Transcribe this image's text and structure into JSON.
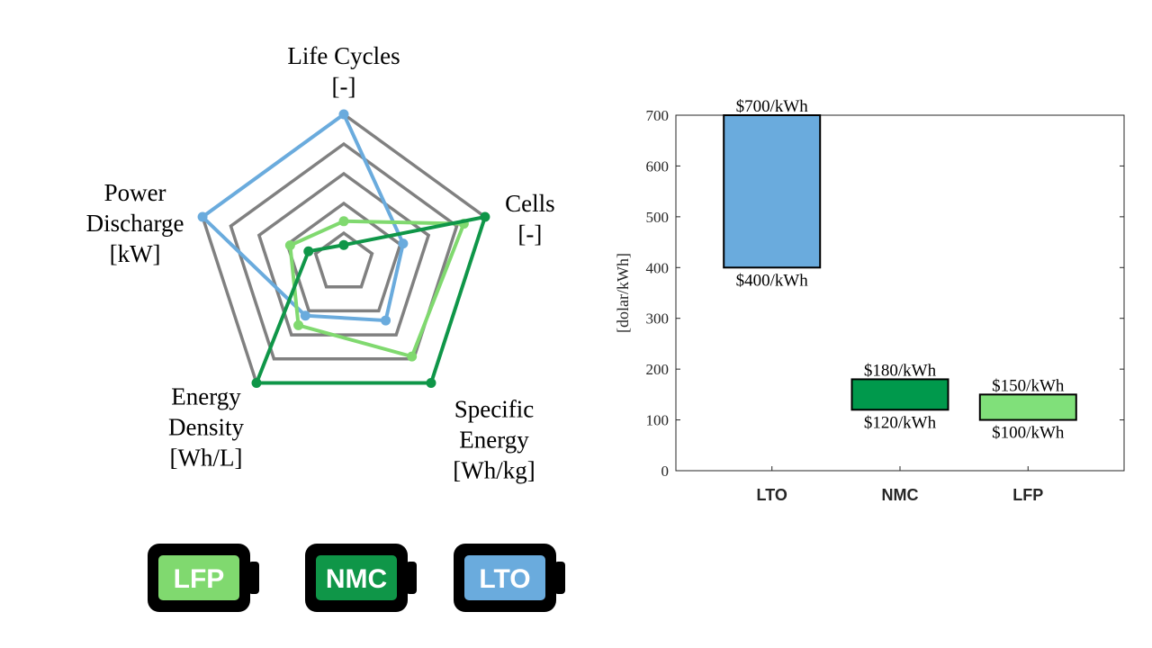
{
  "chart_data": [
    {
      "type": "radar",
      "axes": [
        {
          "lines": [
            "Life Cycles",
            "[-]"
          ]
        },
        {
          "lines": [
            "Cells",
            "[-]"
          ]
        },
        {
          "lines": [
            "Specific",
            "Energy",
            "[Wh/kg]"
          ]
        },
        {
          "lines": [
            "Energy",
            "Density",
            "[Wh/L]"
          ]
        },
        {
          "lines": [
            "Power",
            "Discharge",
            "[kW]"
          ]
        }
      ],
      "rings": [
        0.2,
        0.4,
        0.6,
        0.8,
        1.0
      ],
      "grid": true,
      "series": [
        {
          "key": "LTO",
          "color": "#6aabdd",
          "values": [
            1.0,
            0.42,
            0.48,
            0.44,
            1.0
          ]
        },
        {
          "key": "LFP",
          "color": "#80d96f",
          "values": [
            0.28,
            0.85,
            0.78,
            0.52,
            0.38
          ]
        },
        {
          "key": "NMC",
          "color": "#0f9648",
          "values": [
            0.12,
            1.0,
            1.0,
            1.0,
            0.25
          ]
        }
      ],
      "legend": [
        {
          "label": "LFP",
          "fill": "#80d96f"
        },
        {
          "label": "NMC",
          "fill": "#0f9648"
        },
        {
          "label": "LTO",
          "fill": "#6aabdd"
        }
      ],
      "legend_placement": "bottom"
    },
    {
      "type": "floating-bar",
      "categories": [
        "LTO",
        "NMC",
        "LFP"
      ],
      "series": [
        {
          "low": 400,
          "high": 700,
          "low_label": "$400/kWh",
          "high_label": "$700/kWh",
          "color": "#6aabdd"
        },
        {
          "low": 120,
          "high": 180,
          "low_label": "$120/kWh",
          "high_label": "$180/kWh",
          "color": "#00994c"
        },
        {
          "low": 100,
          "high": 150,
          "low_label": "$100/kWh",
          "high_label": "$150/kWh",
          "color": "#80e07a"
        }
      ],
      "ylabel": "[dolar/kWh]",
      "ylim": [
        0,
        700
      ],
      "yticks": [
        0,
        100,
        200,
        300,
        400,
        500,
        600,
        700
      ]
    }
  ]
}
